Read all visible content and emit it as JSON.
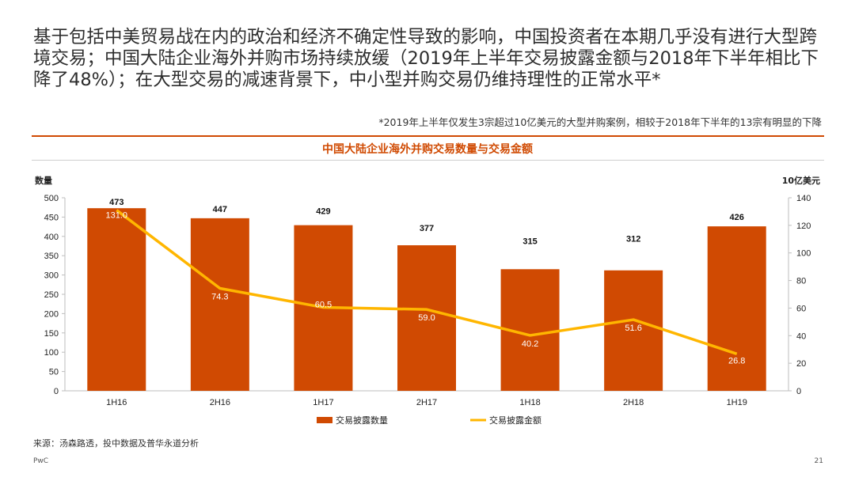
{
  "headline": "基于包括中美贸易战在内的政治和经济不确定性导致的影响，中国投资者在本期几乎没有进行大型跨境交易；中国大陆企业海外并购市场持续放缓（2019年上半年交易披露金额与2018年下半年相比下降了48%）；在大型交易的减速背景下，中小型并购交易仍维持理性的正常水平*",
  "footnote": "*2019年上半年仅发生3宗超过10亿美元的大型并购案例，相较于2018年下半年的13宗有明显的下降",
  "source": "来源：汤森路透，投中数据及普华永道分析",
  "brand": "PwC",
  "page_number": "21",
  "colors": {
    "bar": "#d04a02",
    "line": "#ffb600",
    "accent": "#d04a02"
  },
  "chart_data": {
    "type": "bar",
    "title": "中国大陆企业海外并购交易数量与交易金额",
    "categories": [
      "1H16",
      "2H16",
      "1H17",
      "2H17",
      "1H18",
      "2H18",
      "1H19"
    ],
    "ylabel_left": "数量",
    "ylabel_right": "10亿美元",
    "ylim_left": [
      0,
      500
    ],
    "yticks_left": [
      "0",
      "50",
      "100",
      "150",
      "200",
      "250",
      "300",
      "350",
      "400",
      "450",
      "500"
    ],
    "ylim_right": [
      0,
      140
    ],
    "yticks_right": [
      "0",
      "20",
      "40",
      "60",
      "80",
      "100",
      "120",
      "140"
    ],
    "grid": false,
    "legend_position": "bottom",
    "series": [
      {
        "name": "交易披露数量",
        "type": "bar",
        "axis": "left",
        "values": [
          473,
          447,
          429,
          377,
          315,
          312,
          426
        ],
        "labels": [
          "473",
          "447",
          "429",
          "377",
          "315",
          "312",
          "426"
        ]
      },
      {
        "name": "交易披露金额",
        "type": "line",
        "axis": "right",
        "values": [
          131.0,
          74.3,
          60.5,
          59.0,
          40.2,
          51.6,
          26.8
        ],
        "labels": [
          "131.0",
          "74.3",
          "60.5",
          "59.0",
          "40.2",
          "51.6",
          "26.8"
        ]
      }
    ]
  }
}
